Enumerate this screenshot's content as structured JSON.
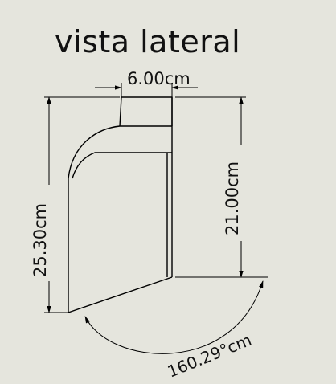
{
  "title": "vista lateral",
  "dimensions": {
    "top_width": "6.00cm",
    "right_height": "21.00cm",
    "left_height": "25.30cm",
    "angle": "160.29°cm"
  },
  "colors": {
    "background": "#e5e5dd",
    "lines": "#000000"
  }
}
